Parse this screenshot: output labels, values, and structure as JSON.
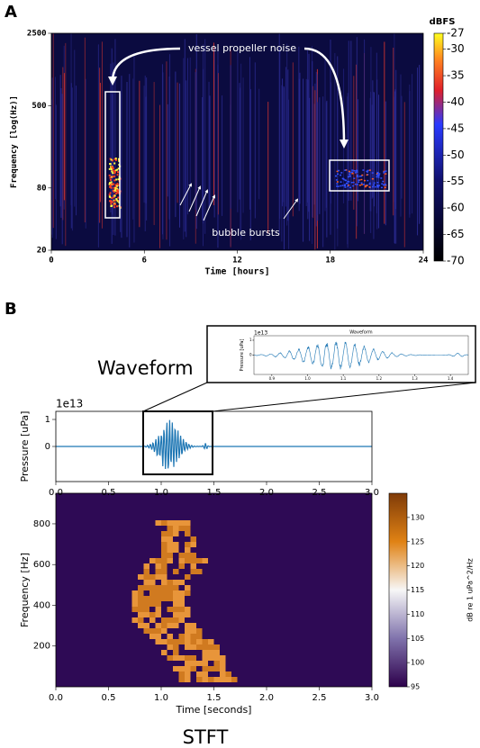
{
  "chart_data": [
    {
      "type": "heatmap",
      "panel_label": "A",
      "xlabel": "Time [hours]",
      "ylabel": "Frequency [log(Hz)]",
      "xlim": [
        0,
        24
      ],
      "xticks": [
        0,
        6,
        12,
        18,
        24
      ],
      "ylim": [
        20,
        2500
      ],
      "yticks": [
        20,
        80,
        500,
        2500
      ],
      "y_log": true,
      "colorbar": {
        "label": "dBFS",
        "lim": [
          -70,
          -27
        ],
        "ticks": [
          -27,
          -30,
          -35,
          -40,
          -45,
          -50,
          -55,
          -60,
          -65,
          -70
        ]
      },
      "annotations": [
        "vessel propeller noise",
        "bubble bursts"
      ]
    },
    {
      "type": "line",
      "panel_label": "B",
      "title": "Waveform",
      "ylabel": "Pressure [uPa]",
      "y_offset_label": "1e13",
      "xlim": [
        0,
        3
      ],
      "xticks": [
        {
          "value": 0,
          "label": "0.0"
        },
        0.5,
        {
          "value": 1,
          "label": "1.0"
        },
        1.5,
        {
          "value": 2,
          "label": "2.0"
        },
        2.5,
        {
          "value": 3,
          "label": "3.0"
        }
      ],
      "ylim": [
        -1.3,
        1.3
      ],
      "yticks": [
        0,
        1
      ],
      "color": "#1f77b4"
    },
    {
      "type": "line",
      "title": "Waveform",
      "ylabel": "Pressure [uPa]",
      "y_offset_label": "1e13",
      "xlim": [
        0.85,
        1.45
      ],
      "xticks": [
        0.9,
        {
          "value": 1,
          "label": "1.0"
        },
        1.1,
        1.2,
        1.3,
        1.4
      ],
      "ylim": [
        -1.3,
        1.3
      ],
      "yticks": [
        0,
        1
      ],
      "color": "#1f77b4"
    },
    {
      "type": "heatmap",
      "title": "STFT",
      "xlabel": "Time [seconds]",
      "ylabel": "Frequency [Hz]",
      "xlim": [
        0,
        3
      ],
      "xticks": [
        {
          "value": 0,
          "label": "0.0"
        },
        0.5,
        {
          "value": 1,
          "label": "1.0"
        },
        1.5,
        {
          "value": 2,
          "label": "2.0"
        },
        2.5,
        {
          "value": 3,
          "label": "3.0"
        }
      ],
      "ylim": [
        0,
        950
      ],
      "yticks": [
        200,
        400,
        600,
        800
      ],
      "colorbar": {
        "label": "dB re 1 uPa^2/Hz",
        "lim": [
          95,
          135
        ],
        "ticks": [
          95,
          100,
          105,
          110,
          115,
          120,
          125,
          130
        ]
      }
    }
  ]
}
